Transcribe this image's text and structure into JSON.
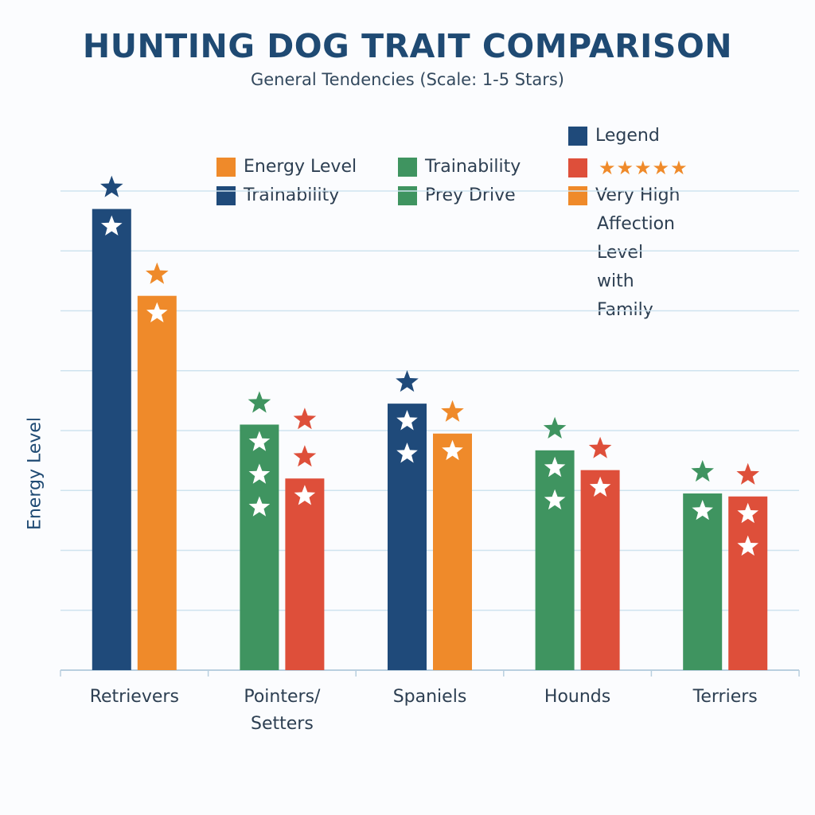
{
  "chart_data": {
    "type": "bar",
    "title": "HUNTING DOG TRAIT COMPARISON",
    "subtitle": "General Tendencies (Scale: 1-5 Stars)",
    "ylabel": "Energy Level",
    "xlabel": "",
    "ylim": [
      0,
      8
    ],
    "grid": true,
    "categories": [
      "Retrievers",
      "Pointers/\nSetters",
      "Spaniels",
      "Hounds",
      "Terriers"
    ],
    "category_labels": [
      [
        "Retrievers"
      ],
      [
        "Pointers/",
        "Setters"
      ],
      [
        "Spaniels"
      ],
      [
        "Hounds"
      ],
      [
        "Terriers"
      ]
    ],
    "groups": [
      {
        "category": "Retrievers",
        "bars": [
          {
            "value": 7.7,
            "color": "#1f4a7a",
            "inner_stars": 1,
            "star_color": "#1f4a7a"
          },
          {
            "value": 6.25,
            "color": "#ef8a2a",
            "inner_stars": 1,
            "star_color": "#ef8a2a"
          }
        ]
      },
      {
        "category": "Pointers/Setters",
        "bars": [
          {
            "value": 4.1,
            "color": "#3f9460",
            "inner_stars": 3,
            "star_color": "#3f9460"
          },
          {
            "value": 3.2,
            "color": "#de4f3a",
            "inner_stars": 1,
            "star_color": "#de4f3a",
            "extra_top_star": true
          }
        ]
      },
      {
        "category": "Spaniels",
        "bars": [
          {
            "value": 4.45,
            "color": "#1f4a7a",
            "inner_stars": 2,
            "star_color": "#1f4a7a"
          },
          {
            "value": 3.95,
            "color": "#ef8a2a",
            "inner_stars": 1,
            "star_color": "#ef8a2a"
          }
        ]
      },
      {
        "category": "Hounds",
        "bars": [
          {
            "value": 3.67,
            "color": "#3f9460",
            "inner_stars": 2,
            "star_color": "#3f9460"
          },
          {
            "value": 3.34,
            "color": "#de4f3a",
            "inner_stars": 1,
            "star_color": "#de4f3a"
          }
        ]
      },
      {
        "category": "Terriers",
        "bars": [
          {
            "value": 2.95,
            "color": "#3f9460",
            "inner_stars": 1,
            "star_color": "#3f9460"
          },
          {
            "value": 2.9,
            "color": "#de4f3a",
            "inner_stars": 2,
            "star_color": "#de4f3a"
          }
        ]
      }
    ]
  },
  "legend": {
    "items": [
      {
        "label": "Energy Level",
        "color": "#ef8a2a"
      },
      {
        "label": "Trainability",
        "color": "#3f9460"
      },
      {
        "label": "Legend",
        "color": "#1f4a7a"
      },
      {
        "label": "Trainability",
        "color": "#1f4a7a"
      },
      {
        "label": "Prey Drive",
        "color": "#3f9460"
      },
      {
        "label": "★★★★★",
        "color": "#de4f3a"
      },
      {
        "label": "Very High",
        "color": "#ef8a2a"
      }
    ],
    "affection_lines": [
      "Affection Level",
      "with Family"
    ]
  }
}
